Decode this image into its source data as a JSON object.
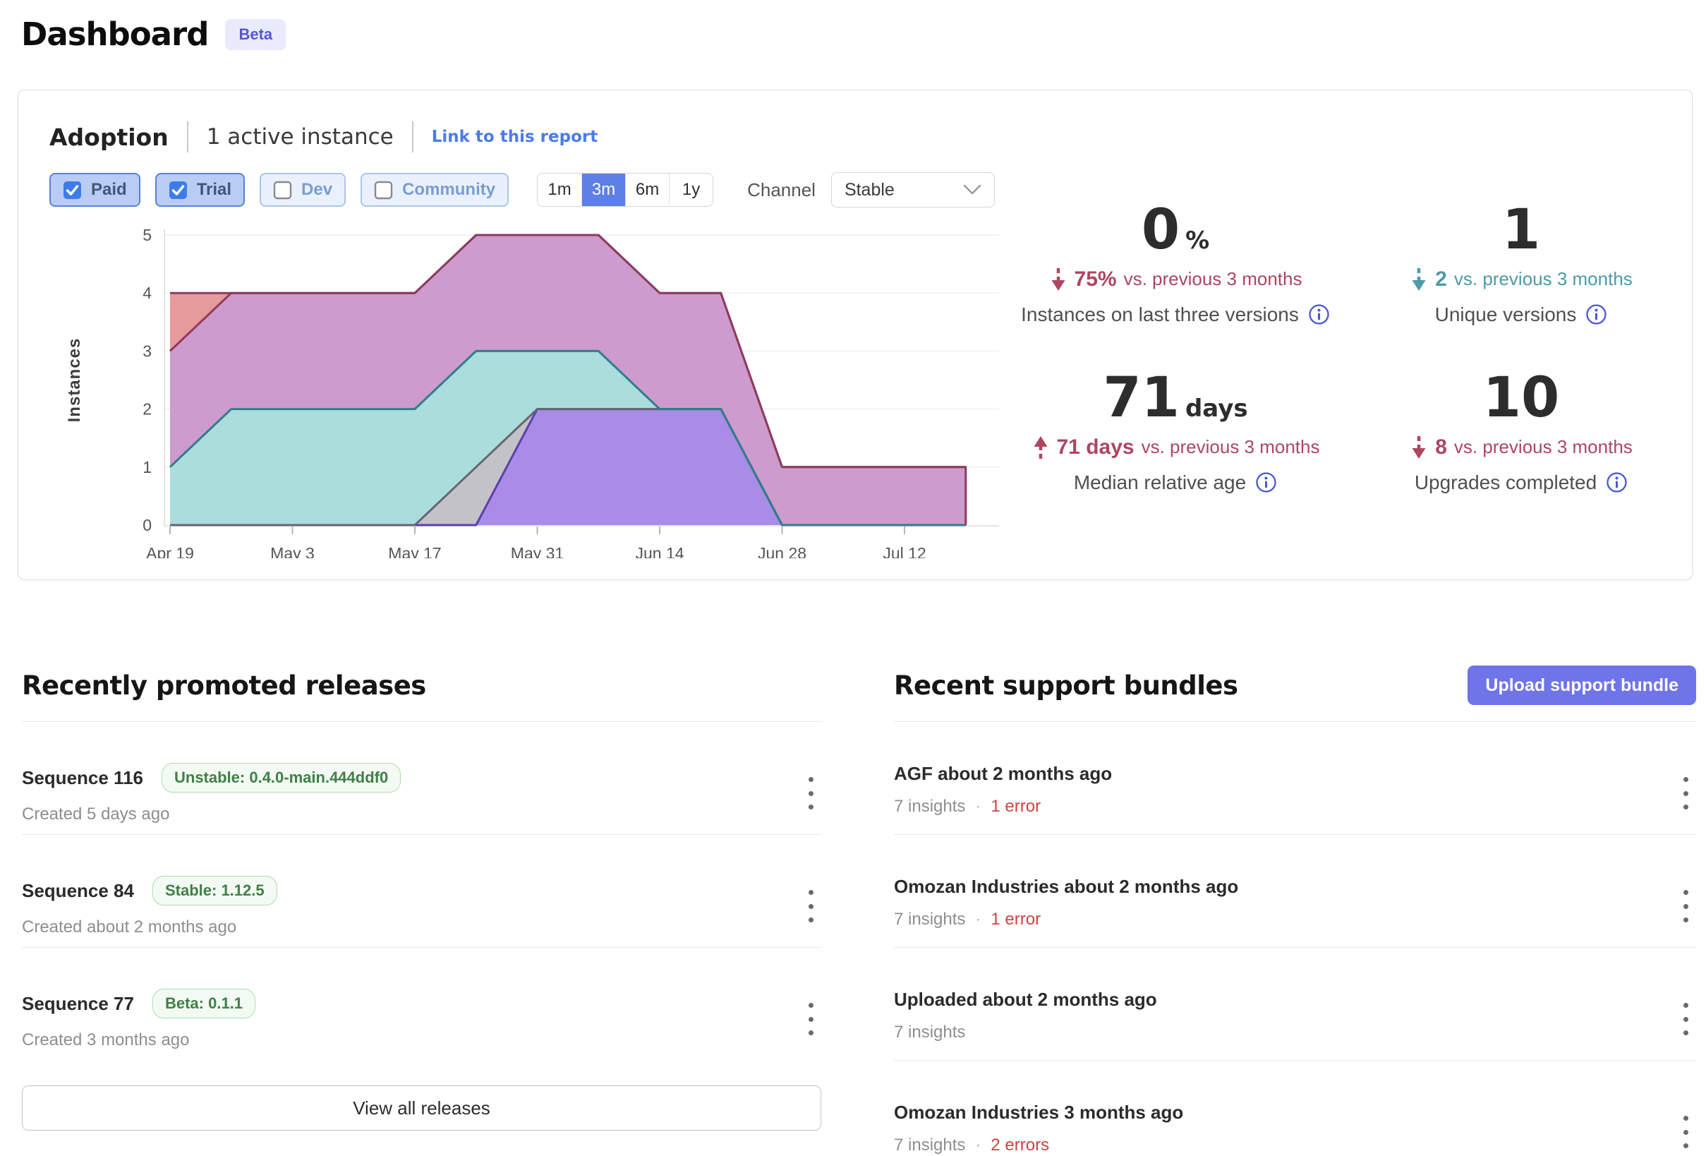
{
  "page": {
    "title": "Dashboard",
    "badge": "Beta"
  },
  "adoption": {
    "title": "Adoption",
    "subtitle": "1 active instance",
    "link_label": "Link to this report",
    "filters": [
      {
        "label": "Paid",
        "checked": true
      },
      {
        "label": "Trial",
        "checked": true
      },
      {
        "label": "Dev",
        "checked": false
      },
      {
        "label": "Community",
        "checked": false
      }
    ],
    "ranges": [
      {
        "label": "1m",
        "active": false
      },
      {
        "label": "3m",
        "active": true
      },
      {
        "label": "6m",
        "active": false
      },
      {
        "label": "1y",
        "active": false
      }
    ],
    "range_active_color": "#5c80e6",
    "channel_label": "Channel",
    "channel_value": "Stable",
    "stats": [
      {
        "value": "0",
        "suffix": "%",
        "delta_dir": "down",
        "delta_value": "75%",
        "delta_rest": "vs. previous 3 months",
        "delta_color": "red",
        "label": "Instances on last three versions"
      },
      {
        "value": "1",
        "suffix": "",
        "delta_dir": "down",
        "delta_value": "2",
        "delta_rest": "vs. previous 3 months",
        "delta_color": "teal",
        "label": "Unique versions"
      },
      {
        "value": "71",
        "suffix": "days",
        "delta_dir": "up",
        "delta_value": "71 days",
        "delta_rest": "vs. previous 3 months",
        "delta_color": "red",
        "label": "Median relative age"
      },
      {
        "value": "10",
        "suffix": "",
        "delta_dir": "down",
        "delta_value": "8",
        "delta_rest": "vs. previous 3 months",
        "delta_color": "red",
        "label": "Upgrades completed"
      }
    ],
    "status_colors": {
      "red": "#ad4660",
      "teal": "#4d9aa9",
      "info_icon": "#4956d4"
    }
  },
  "chart_data": {
    "type": "area",
    "stacked": true,
    "ylabel": "Instances",
    "ylim": [
      0,
      5
    ],
    "yticks": [
      0,
      1,
      2,
      3,
      4,
      5
    ],
    "grid": true,
    "legend": "none",
    "x_unit": "days since Apr 19",
    "x": [
      0,
      7,
      14,
      21,
      28,
      35,
      42,
      49,
      56,
      63,
      70,
      77,
      84,
      91
    ],
    "xticks": [
      {
        "day": 0,
        "label": "Apr 19"
      },
      {
        "day": 14,
        "label": "May 3"
      },
      {
        "day": 28,
        "label": "May 17"
      },
      {
        "day": 42,
        "label": "May 31"
      },
      {
        "day": 56,
        "label": "Jun 14"
      },
      {
        "day": 70,
        "label": "Jun 28"
      },
      {
        "day": 84,
        "label": "Jul 12"
      }
    ],
    "series": [
      {
        "name": "version-purple",
        "fill": "#a98ce6",
        "stroke": "#5b3fae",
        "values": [
          0,
          0,
          0,
          0,
          0,
          0,
          2,
          2,
          2,
          2,
          0,
          0,
          0,
          0
        ]
      },
      {
        "name": "version-gray",
        "fill": "#c4c2c9",
        "stroke": "#686672",
        "values": [
          0,
          0,
          0,
          0,
          0,
          1,
          0,
          0,
          0,
          0,
          0,
          0,
          0,
          0
        ]
      },
      {
        "name": "version-teal",
        "fill": "#abdddd",
        "stroke": "#2f7e8c",
        "values": [
          1,
          2,
          2,
          2,
          2,
          2,
          1,
          1,
          0,
          0,
          0,
          0,
          0,
          0
        ]
      },
      {
        "name": "version-pink",
        "fill": "#cd9bcd",
        "stroke": "#8d3b5e",
        "values": [
          2,
          2,
          2,
          2,
          2,
          2,
          2,
          2,
          2,
          2,
          1,
          1,
          1,
          1
        ]
      },
      {
        "name": "version-red",
        "fill": "#e69a9c",
        "stroke": "#8d3b5e",
        "values": [
          1,
          0,
          0,
          0,
          0,
          0,
          0,
          0,
          0,
          0,
          0,
          0,
          0,
          0
        ]
      }
    ]
  },
  "releases": {
    "heading": "Recently promoted releases",
    "items": [
      {
        "title": "Sequence 116",
        "badge": "Unstable: 0.4.0-main.444ddf0",
        "created": "Created 5 days ago"
      },
      {
        "title": "Sequence 84",
        "badge": "Stable: 1.12.5",
        "created": "Created about 2 months ago"
      },
      {
        "title": "Sequence 77",
        "badge": "Beta: 0.1.1",
        "created": "Created 3 months ago"
      }
    ],
    "view_all_label": "View all releases"
  },
  "bundles": {
    "heading": "Recent support bundles",
    "upload_label": "Upload support bundle",
    "items": [
      {
        "title": "AGF about 2 months ago",
        "insights": "7 insights",
        "errors": "1 error"
      },
      {
        "title": "Omozan Industries about 2 months ago",
        "insights": "7 insights",
        "errors": "1 error"
      },
      {
        "title": "Uploaded about 2 months ago",
        "insights": "7 insights",
        "errors": null
      },
      {
        "title": "Omozan Industries 3 months ago",
        "insights": "7 insights",
        "errors": "2 errors"
      }
    ]
  }
}
